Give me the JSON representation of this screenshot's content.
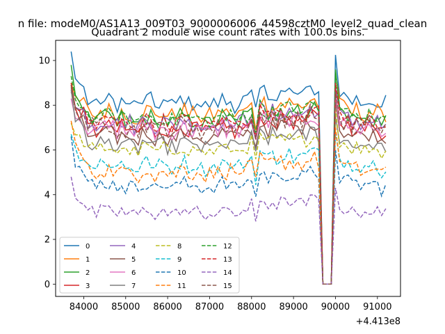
{
  "chart_data": {
    "type": "line",
    "suptitle": "n file: modeM0/AS1A13_009T03_9000006006_44598cztM0_level2_quad_clean",
    "title": "Quadrant 2 module wise count rates with 100.0s bins.",
    "xlabel": "",
    "ylabel": "",
    "x_offset_label": "+4.413e8",
    "xticks": [
      "84000",
      "85000",
      "86000",
      "87000",
      "88000",
      "89000",
      "90000",
      "91000"
    ],
    "yticks": [
      "0",
      "2",
      "4",
      "6",
      "8",
      "10"
    ],
    "xlim": [
      83330,
      91550
    ],
    "ylim": [
      -0.55,
      10.9
    ],
    "x_start": 83700,
    "x_step": 100,
    "n_points": 76,
    "gap": {
      "start": 89700,
      "end": 89950
    },
    "legend_position": "lower-left",
    "grid": false,
    "series": [
      {
        "name": "0",
        "color": "#1f77b4",
        "linestyle": "solid",
        "base": 8.1,
        "peak_start": 10.4,
        "peak_after": 10.25,
        "amp": 0.35
      },
      {
        "name": "1",
        "color": "#ff7f0e",
        "linestyle": "solid",
        "base": 7.6,
        "peak_start": 9.0,
        "peak_after": 9.4,
        "amp": 0.4
      },
      {
        "name": "2",
        "color": "#2ca02c",
        "linestyle": "solid",
        "base": 7.3,
        "peak_start": 9.8,
        "peak_after": 9.6,
        "amp": 0.4
      },
      {
        "name": "3",
        "color": "#d62728",
        "linestyle": "solid",
        "base": 6.9,
        "peak_start": 9.0,
        "peak_after": 8.6,
        "amp": 0.35
      },
      {
        "name": "4",
        "color": "#9467bd",
        "linestyle": "solid",
        "base": 7.2,
        "peak_start": 8.6,
        "peak_after": 8.8,
        "amp": 0.4
      },
      {
        "name": "5",
        "color": "#8c564b",
        "linestyle": "solid",
        "base": 6.6,
        "peak_start": 8.8,
        "peak_after": 8.2,
        "amp": 0.35
      },
      {
        "name": "6",
        "color": "#e377c2",
        "linestyle": "solid",
        "base": 6.9,
        "peak_start": 8.3,
        "peak_after": 8.5,
        "amp": 0.4
      },
      {
        "name": "7",
        "color": "#7f7f7f",
        "linestyle": "solid",
        "base": 6.2,
        "peak_start": 8.7,
        "peak_after": 7.5,
        "amp": 0.35
      },
      {
        "name": "8",
        "color": "#bcbd22",
        "linestyle": "dashed",
        "base": 6.0,
        "peak_start": 7.2,
        "peak_after": 7.8,
        "amp": 0.3
      },
      {
        "name": "9",
        "color": "#17becf",
        "linestyle": "dashed",
        "base": 5.3,
        "peak_start": 6.7,
        "peak_after": 6.8,
        "amp": 0.35
      },
      {
        "name": "10",
        "color": "#1f77b4",
        "linestyle": "dashed",
        "base": 4.4,
        "peak_start": 6.6,
        "peak_after": 6.0,
        "amp": 0.3
      },
      {
        "name": "11",
        "color": "#ff7f0e",
        "linestyle": "dashed",
        "base": 5.0,
        "peak_start": 7.3,
        "peak_after": 7.0,
        "amp": 0.35
      },
      {
        "name": "12",
        "color": "#2ca02c",
        "linestyle": "dashed",
        "base": 7.4,
        "peak_start": 9.3,
        "peak_after": 9.5,
        "amp": 0.35
      },
      {
        "name": "13",
        "color": "#d62728",
        "linestyle": "dashed",
        "base": 7.2,
        "peak_start": 8.9,
        "peak_after": 9.0,
        "amp": 0.35
      },
      {
        "name": "14",
        "color": "#9467bd",
        "linestyle": "dashed",
        "base": 3.2,
        "peak_start": 4.8,
        "peak_after": 4.3,
        "amp": 0.25
      },
      {
        "name": "15",
        "color": "#8c564b",
        "linestyle": "dashed",
        "base": 7.0,
        "peak_start": 8.9,
        "peak_after": 8.6,
        "amp": 0.4
      }
    ]
  }
}
